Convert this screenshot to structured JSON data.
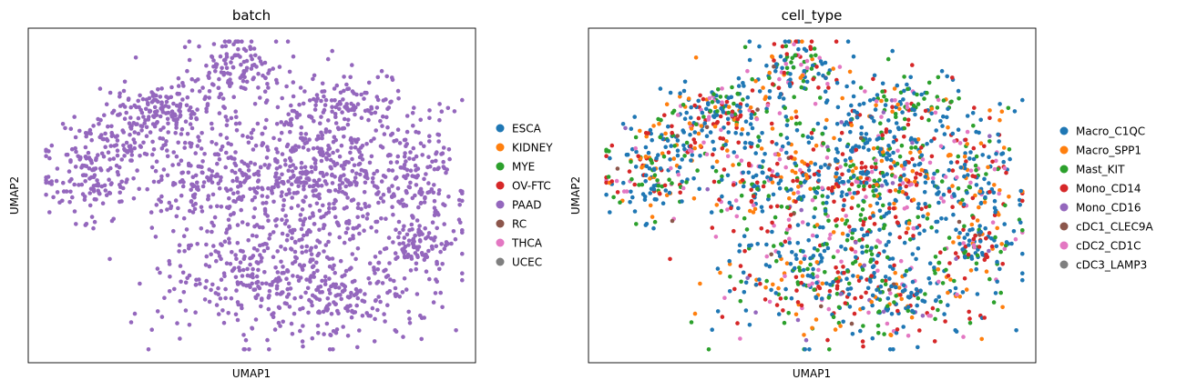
{
  "chart_data": [
    {
      "type": "scatter",
      "title": "batch",
      "xlabel": "UMAP1",
      "ylabel": "UMAP2",
      "ticks": false,
      "grid": false,
      "legend_placement": "right",
      "legend": [
        {
          "name": "ESCA",
          "color": "#1f77b4"
        },
        {
          "name": "KIDNEY",
          "color": "#ff7f0e"
        },
        {
          "name": "MYE",
          "color": "#2ca02c"
        },
        {
          "name": "OV-FTC",
          "color": "#d62728"
        },
        {
          "name": "PAAD",
          "color": "#9467bd"
        },
        {
          "name": "RC",
          "color": "#8c564b"
        },
        {
          "name": "THCA",
          "color": "#e377c2"
        },
        {
          "name": "UCEC",
          "color": "#7f7f7f"
        }
      ],
      "point_colors": [
        "#9467bd"
      ],
      "n_points": 2000
    },
    {
      "type": "scatter",
      "title": "cell_type",
      "xlabel": "UMAP1",
      "ylabel": "UMAP2",
      "ticks": false,
      "grid": false,
      "legend_placement": "right",
      "legend": [
        {
          "name": "Macro_C1QC",
          "color": "#1f77b4"
        },
        {
          "name": "Macro_SPP1",
          "color": "#ff7f0e"
        },
        {
          "name": "Mast_KIT",
          "color": "#2ca02c"
        },
        {
          "name": "Mono_CD14",
          "color": "#d62728"
        },
        {
          "name": "Mono_CD16",
          "color": "#9467bd"
        },
        {
          "name": "cDC1_CLEC9A",
          "color": "#8c564b"
        },
        {
          "name": "cDC2_CD1C",
          "color": "#e377c2"
        },
        {
          "name": "cDC3_LAMP3",
          "color": "#7f7f7f"
        }
      ],
      "point_colors": [
        "#1f77b4",
        "#ff7f0e",
        "#2ca02c",
        "#d62728",
        "#9467bd",
        "#8c564b",
        "#e377c2",
        "#7f7f7f"
      ],
      "point_weights": [
        0.4,
        0.12,
        0.2,
        0.17,
        0.02,
        0.01,
        0.08,
        0.0
      ],
      "n_points": 2000
    }
  ]
}
